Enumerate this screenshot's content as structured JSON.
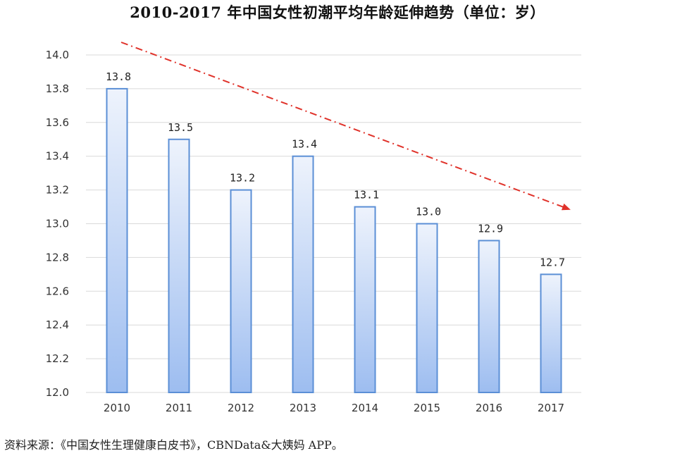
{
  "chart_data": {
    "type": "bar",
    "title": "2010-2017 年中国女性初潮平均年龄延伸趋势（单位：岁）",
    "categories": [
      "2010",
      "2011",
      "2012",
      "2013",
      "2014",
      "2015",
      "2016",
      "2017"
    ],
    "values": [
      13.8,
      13.5,
      13.2,
      13.4,
      13.1,
      13.0,
      12.9,
      12.7
    ],
    "data_labels": [
      "13.8",
      "13.5",
      "13.2",
      "13.4",
      "13.1",
      "13.0",
      "12.9",
      "12.7"
    ],
    "yticks": [
      "12.0",
      "12.2",
      "12.4",
      "12.6",
      "12.8",
      "13.0",
      "13.2",
      "13.4",
      "13.6",
      "13.8",
      "14.0"
    ],
    "ylim": [
      12.0,
      14.0
    ],
    "xlabel": "",
    "ylabel": "",
    "grid": true,
    "trend_arrow": {
      "style": "dash-dot",
      "direction": "down",
      "color": "#e0322a"
    },
    "colors": {
      "bar_stroke": "#5b8fd6",
      "bar_fill_top": "#eef3fc",
      "bar_fill_bottom": "#9dbdf0"
    }
  },
  "source_note": "资料来源：《中国女性生理健康白皮书》，CBNData&大姨妈 APP。"
}
